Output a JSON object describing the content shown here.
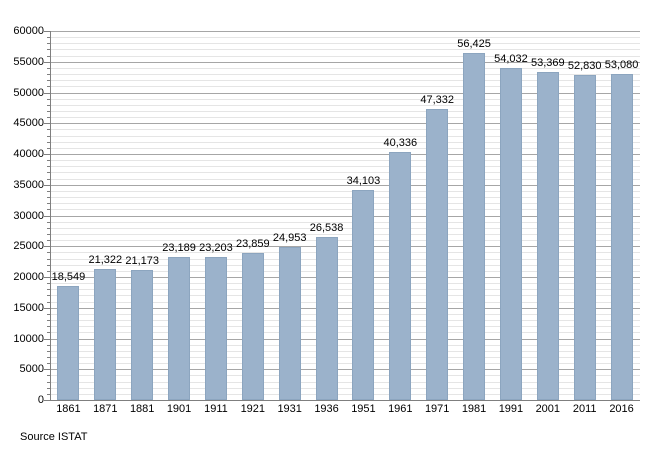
{
  "chart_data": {
    "type": "bar",
    "title": "",
    "categories": [
      "1861",
      "1871",
      "1881",
      "1901",
      "1911",
      "1921",
      "1931",
      "1936",
      "1951",
      "1961",
      "1971",
      "1981",
      "1991",
      "2001",
      "2011",
      "2016"
    ],
    "values": [
      18549,
      21322,
      21173,
      23189,
      23203,
      23859,
      24953,
      26538,
      34103,
      40336,
      47332,
      56425,
      54032,
      53369,
      52830,
      53080
    ],
    "value_labels": [
      "18,549",
      "21,322",
      "21,173",
      "23,189",
      "23,203",
      "23,859",
      "24,953",
      "26,538",
      "34,103",
      "40,336",
      "47,332",
      "56,425",
      "54,032",
      "53,369",
      "52,830",
      "53,080"
    ],
    "xlabel": "",
    "ylabel": "",
    "ylim": [
      0,
      60000
    ],
    "ytick_step": 5000,
    "yminor_step": 1000,
    "ytick_labels": [
      "0",
      "5000",
      "10000",
      "15000",
      "20000",
      "25000",
      "30000",
      "35000",
      "40000",
      "45000",
      "50000",
      "55000",
      "60000"
    ],
    "grid": true,
    "legend": false,
    "source_note": "Source ISTAT",
    "colors": {
      "bar_fill": "#9BB2CB",
      "bar_border": "#8CA5BF",
      "major_grid": "#A6A6A6",
      "minor_grid": "#E5E5E5",
      "axis": "#7F7F7F",
      "text": "#000000"
    }
  }
}
